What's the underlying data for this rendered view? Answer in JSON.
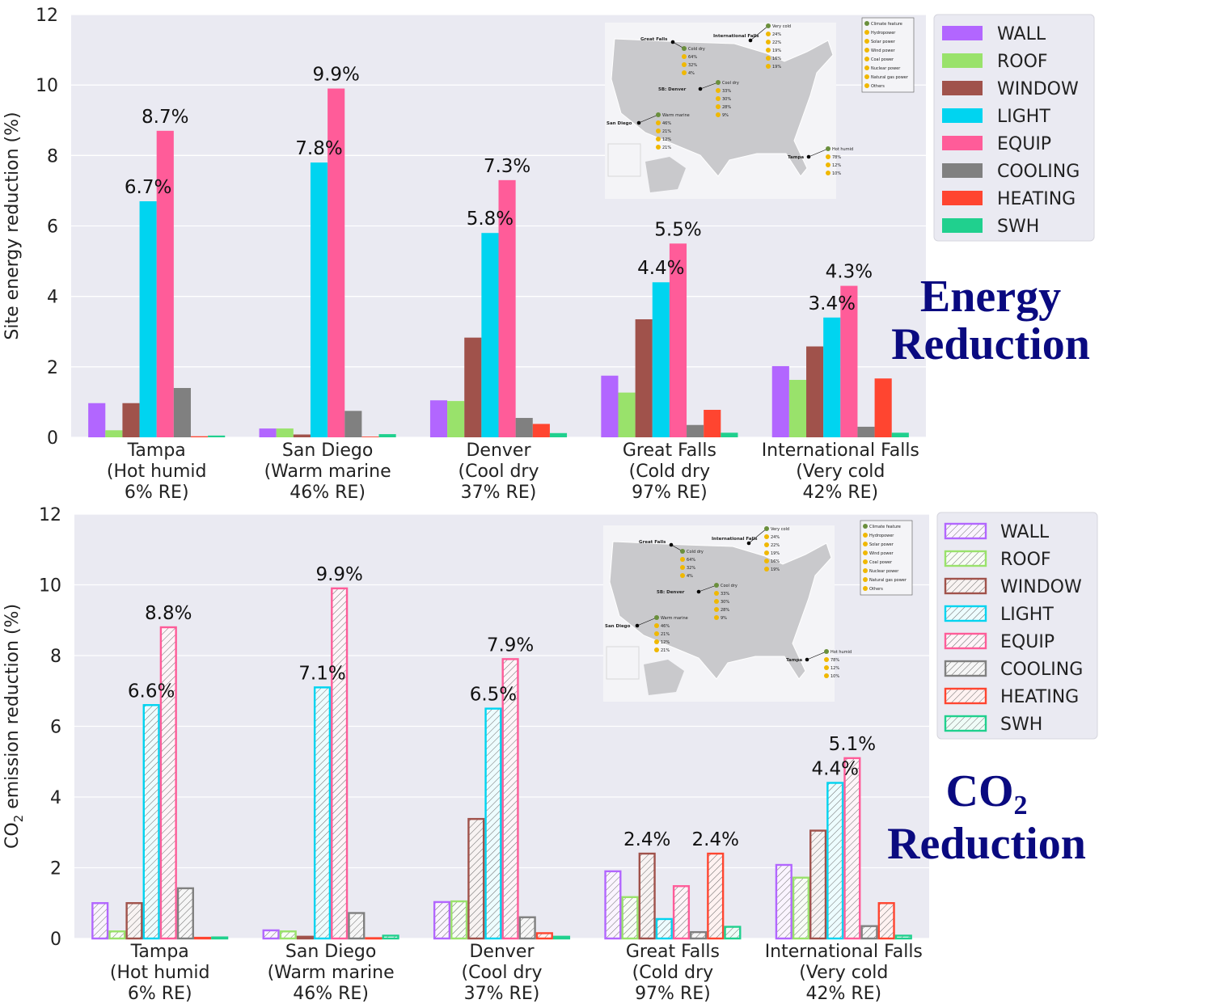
{
  "series_colors": {
    "WALL": "#b266ff",
    "ROOF": "#99e26b",
    "WINDOW": "#a0524b",
    "LIGHT": "#00d4f0",
    "EQUIP": "#ff5c99",
    "COOLING": "#808080",
    "HEATING": "#ff4530",
    "SWH": "#20d08e"
  },
  "energy_title": "Energy Reduction",
  "co2_title": {
    "main": "CO",
    "sub": "2",
    "line2": "Reduction"
  },
  "chart_data": [
    {
      "type": "bar",
      "ylabel": "Site energy reduction (%)",
      "ylim": [
        0,
        12
      ],
      "yticks": [
        0,
        2,
        4,
        6,
        8,
        10,
        12
      ],
      "grid": true,
      "legend_position": "right",
      "hatched": false,
      "categories": [
        [
          "Tampa",
          "(Hot humid",
          "6% RE)"
        ],
        [
          "San Diego",
          "(Warm marine",
          "46% RE)"
        ],
        [
          "Denver",
          "(Cool dry",
          "37% RE)"
        ],
        [
          "Great Falls",
          "(Cold dry",
          "97% RE)"
        ],
        [
          "International Falls",
          "(Very cold",
          "42% RE)"
        ]
      ],
      "series": [
        {
          "name": "WALL",
          "values": [
            0.97,
            0.25,
            1.05,
            1.75,
            2.02
          ]
        },
        {
          "name": "ROOF",
          "values": [
            0.2,
            0.25,
            1.03,
            1.27,
            1.63
          ]
        },
        {
          "name": "WINDOW",
          "values": [
            0.97,
            0.08,
            2.83,
            3.35,
            2.58
          ]
        },
        {
          "name": "LIGHT",
          "values": [
            6.7,
            7.8,
            5.8,
            4.4,
            3.4
          ]
        },
        {
          "name": "EQUIP",
          "values": [
            8.7,
            9.9,
            7.3,
            5.5,
            4.3
          ]
        },
        {
          "name": "COOLING",
          "values": [
            1.4,
            0.75,
            0.55,
            0.35,
            0.3
          ]
        },
        {
          "name": "HEATING",
          "values": [
            0.03,
            0.02,
            0.38,
            0.78,
            1.67
          ]
        },
        {
          "name": "SWH",
          "values": [
            0.05,
            0.09,
            0.12,
            0.13,
            0.13
          ]
        }
      ],
      "annotations": [
        {
          "category": 0,
          "series": "LIGHT",
          "text": "6.7%"
        },
        {
          "category": 0,
          "series": "EQUIP",
          "text": "8.7%"
        },
        {
          "category": 1,
          "series": "LIGHT",
          "text": "7.8%"
        },
        {
          "category": 1,
          "series": "EQUIP",
          "text": "9.9%"
        },
        {
          "category": 2,
          "series": "LIGHT",
          "text": "5.8%"
        },
        {
          "category": 2,
          "series": "EQUIP",
          "text": "7.3%"
        },
        {
          "category": 3,
          "series": "LIGHT",
          "text": "4.4%"
        },
        {
          "category": 3,
          "series": "EQUIP",
          "text": "5.5%"
        },
        {
          "category": 4,
          "series": "LIGHT",
          "text": "3.4%"
        },
        {
          "category": 4,
          "series": "EQUIP",
          "text": "4.3%"
        }
      ]
    },
    {
      "type": "bar",
      "ylabel": "CO2 emission reduction (%)",
      "ylim": [
        0,
        12
      ],
      "yticks": [
        0,
        2,
        4,
        6,
        8,
        10,
        12
      ],
      "grid": true,
      "legend_position": "right",
      "hatched": true,
      "categories": [
        [
          "Tampa",
          "(Hot humid",
          "6% RE)"
        ],
        [
          "San Diego",
          "(Warm marine",
          "46% RE)"
        ],
        [
          "Denver",
          "(Cool dry",
          "37% RE)"
        ],
        [
          "Great Falls",
          "(Cold dry",
          "97% RE)"
        ],
        [
          "International Falls",
          "(Very cold",
          "42% RE)"
        ]
      ],
      "series": [
        {
          "name": "WALL",
          "values": [
            1.0,
            0.23,
            1.03,
            1.9,
            2.08
          ]
        },
        {
          "name": "ROOF",
          "values": [
            0.2,
            0.2,
            1.05,
            1.17,
            1.72
          ]
        },
        {
          "name": "WINDOW",
          "values": [
            1.0,
            0.05,
            3.38,
            2.4,
            3.05
          ]
        },
        {
          "name": "LIGHT",
          "values": [
            6.6,
            7.1,
            6.5,
            0.55,
            4.4
          ]
        },
        {
          "name": "EQUIP",
          "values": [
            8.8,
            9.9,
            7.9,
            1.48,
            5.1
          ]
        },
        {
          "name": "COOLING",
          "values": [
            1.42,
            0.72,
            0.6,
            0.18,
            0.35
          ]
        },
        {
          "name": "HEATING",
          "values": [
            0.02,
            0.01,
            0.15,
            2.4,
            1.0
          ]
        },
        {
          "name": "SWH",
          "values": [
            0.03,
            0.08,
            0.05,
            0.33,
            0.08
          ]
        }
      ],
      "annotations": [
        {
          "category": 0,
          "series": "LIGHT",
          "text": "6.6%"
        },
        {
          "category": 0,
          "series": "EQUIP",
          "text": "8.8%"
        },
        {
          "category": 1,
          "series": "LIGHT",
          "text": "7.1%"
        },
        {
          "category": 1,
          "series": "EQUIP",
          "text": "9.9%"
        },
        {
          "category": 2,
          "series": "LIGHT",
          "text": "6.5%"
        },
        {
          "category": 2,
          "series": "EQUIP",
          "text": "7.9%"
        },
        {
          "category": 3,
          "series": "WINDOW",
          "text": "2.4%"
        },
        {
          "category": 3,
          "series": "HEATING",
          "text": "2.4%"
        },
        {
          "category": 4,
          "series": "LIGHT",
          "text": "4.4%"
        },
        {
          "category": 4,
          "series": "EQUIP",
          "text": "5.1%"
        }
      ]
    }
  ],
  "inset_map": {
    "legend": [
      "Climate feature",
      "Hydropower",
      "Solar power",
      "Wind power",
      "Coal power",
      "Nuclear power",
      "Natural gas power",
      "Others"
    ],
    "cities": [
      {
        "name": "Great Falls",
        "climate": "Cold dry",
        "mix": [
          "64%",
          "32%",
          "4%"
        ]
      },
      {
        "name": "International Falls",
        "climate": "Very cold",
        "mix": [
          "24%",
          "22%",
          "19%",
          "16%",
          "19%"
        ]
      },
      {
        "name": "5B: Denver",
        "climate": "Cool dry",
        "mix": [
          "33%",
          "30%",
          "28%",
          "9%"
        ]
      },
      {
        "name": "San Diego",
        "climate": "Warm marine",
        "mix": [
          "46%",
          "21%",
          "12%",
          "21%"
        ]
      },
      {
        "name": "Tampa",
        "climate": "Hot humid",
        "mix": [
          "78%",
          "12%",
          "10%"
        ]
      }
    ],
    "alt_values": {
      "International Falls": [
        "24%",
        "22%",
        "19%",
        "19%",
        "19%"
      ],
      "5B: Denver": [
        "23%",
        "30%",
        "28%",
        "9%"
      ]
    }
  }
}
